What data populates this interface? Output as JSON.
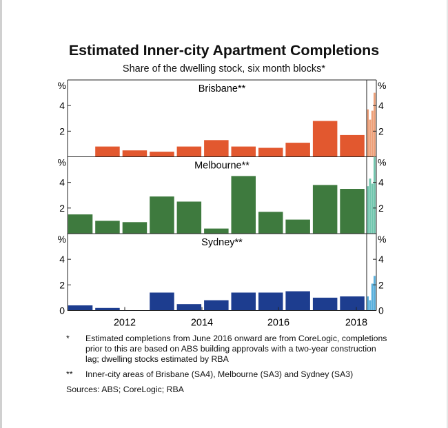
{
  "title": "Estimated Inner-city Apartment Completions",
  "subtitle": "Share of the dwelling stock, six month blocks*",
  "chart_data": {
    "type": "bar",
    "unit": "%",
    "x_ticks": [
      "2012",
      "2014",
      "2016",
      "2018"
    ],
    "ylim": [
      0,
      6
    ],
    "y_ticks": [
      "2",
      "4"
    ],
    "y_tick_values": [
      2,
      4
    ],
    "zero_label": "0",
    "divider_after_period": 16,
    "panels": [
      {
        "name": "Brisbane**",
        "colors": {
          "historical": "#e2582f",
          "estimated": "#eda079"
        },
        "values": [
          0.0,
          0.8,
          0.5,
          0.4,
          0.8,
          1.3,
          0.8,
          0.7,
          1.1,
          2.8,
          1.7,
          3.7,
          2.9,
          3.6,
          5.0
        ]
      },
      {
        "name": "Melbourne**",
        "colors": {
          "historical": "#3e7a3e",
          "estimated": "#72c6ae"
        },
        "values": [
          1.5,
          1.0,
          0.9,
          2.9,
          2.5,
          0.4,
          4.5,
          1.7,
          1.1,
          3.8,
          3.5,
          3.7,
          4.3,
          3.9,
          6.0
        ]
      },
      {
        "name": "Sydney**",
        "colors": {
          "historical": "#1d3d8f",
          "estimated": "#5ab0dc"
        },
        "values": [
          0.4,
          0.2,
          0.0,
          1.4,
          0.5,
          0.8,
          1.4,
          1.4,
          1.5,
          1.0,
          1.1,
          1.1,
          0.8,
          2.1,
          2.7
        ]
      }
    ]
  },
  "notes": [
    {
      "mark": "*",
      "text": "Estimated completions from June 2016 onward are from CoreLogic, completions prior to this are based on ABS building approvals with a two-year construction lag; dwelling stocks estimated by RBA"
    },
    {
      "mark": "**",
      "text": "Inner-city areas of Brisbane (SA4), Melbourne (SA3) and Sydney (SA3)"
    }
  ],
  "sources": "Sources:   ABS; CoreLogic; RBA"
}
